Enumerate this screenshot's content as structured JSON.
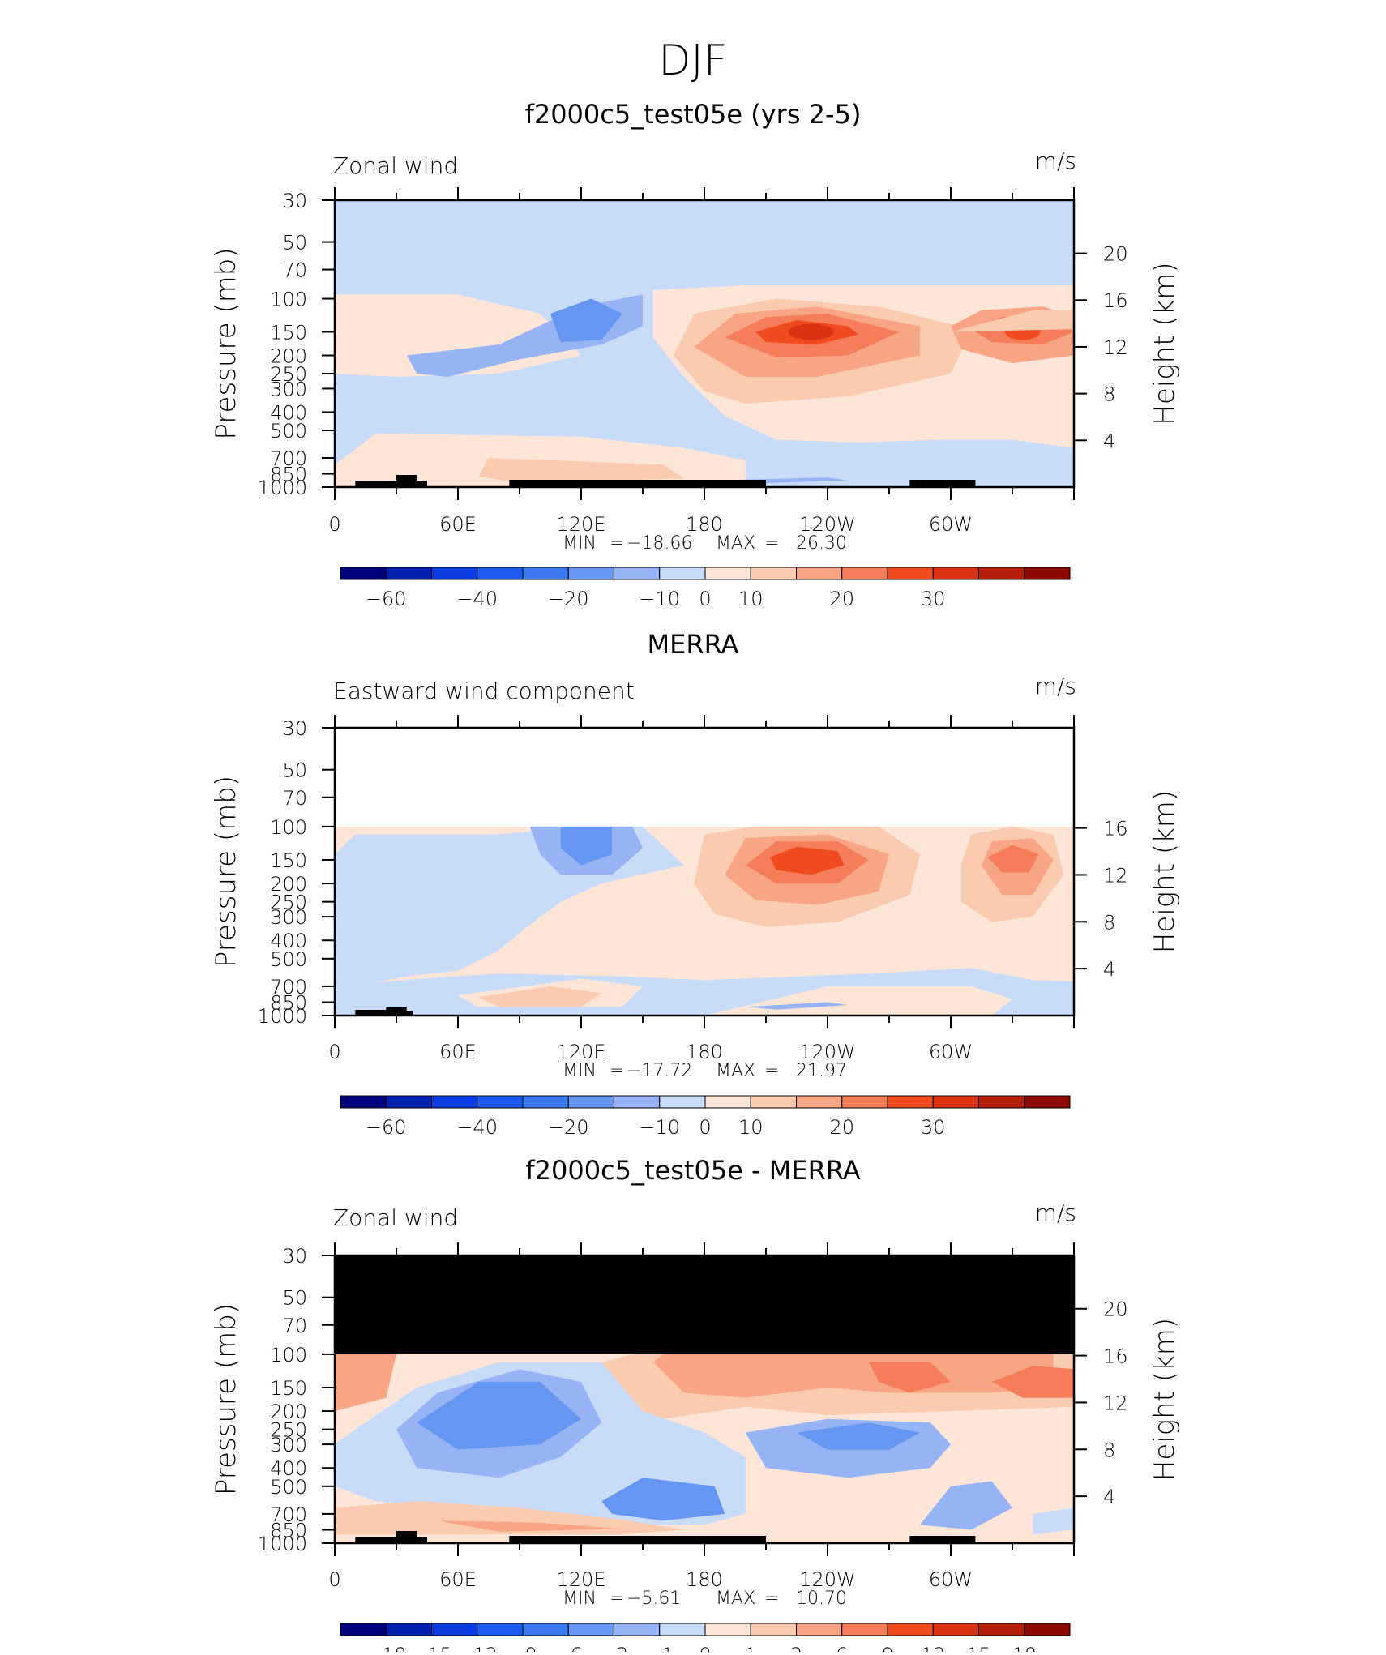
{
  "page_title": "DJF",
  "colors": {
    "land": "#000000",
    "masked": "#000000",
    "frame": "#000000"
  },
  "chart_data": [
    {
      "type": "heatmap",
      "title": "f2000c5_test05e (yrs 2-5)",
      "subtitle_left": "Zonal wind",
      "subtitle_right": "m/s",
      "ylabel": "Pressure (mb)",
      "ylabel_right": "Height (km)",
      "x_ticks": [
        "0",
        "60E",
        "120E",
        "180",
        "120W",
        "60W"
      ],
      "y_ticks": [
        "30",
        "50",
        "70",
        "100",
        "150",
        "200",
        "250",
        "300",
        "400",
        "500",
        "700",
        "850",
        "1000"
      ],
      "y_ticks_right": [
        "20",
        "16",
        "12",
        "8",
        "4"
      ],
      "stats": {
        "min_label": "MIN",
        "min_value": "-18.66",
        "max_label": "MAX",
        "max_value": "26.30"
      },
      "colorbar": {
        "levels": [
          "-60",
          "-40",
          "-20",
          "-10",
          "0",
          "10",
          "20",
          "30"
        ],
        "colors": [
          "#00007f",
          "#0020b0",
          "#0a3ce0",
          "#1e5af0",
          "#3c78f0",
          "#6496f2",
          "#96b4f5",
          "#c8dcfa",
          "#fde6d7",
          "#fbcbb0",
          "#f8a585",
          "#f57d5a",
          "#f04b1e",
          "#dc3214",
          "#b41e0a",
          "#8c0a00"
        ]
      },
      "background_value": "-2",
      "masked_top": false,
      "features": [
        {
          "lon": 110,
          "p": 150,
          "value": 26.3,
          "desc": "jet max"
        },
        {
          "lon": 330,
          "p": 150,
          "value": 22,
          "desc": "jet max"
        },
        {
          "lon": 120,
          "p": 110,
          "value": -18.66,
          "desc": "min"
        }
      ]
    },
    {
      "type": "heatmap",
      "title": "MERRA",
      "subtitle_left": "Eastward wind component",
      "subtitle_right": "m/s",
      "ylabel": "Pressure (mb)",
      "ylabel_right": "Height (km)",
      "x_ticks": [
        "0",
        "60E",
        "120E",
        "180",
        "120W",
        "60W"
      ],
      "y_ticks": [
        "30",
        "50",
        "70",
        "100",
        "150",
        "200",
        "250",
        "300",
        "400",
        "500",
        "700",
        "850",
        "1000"
      ],
      "y_ticks_right": [
        "16",
        "12",
        "8",
        "4"
      ],
      "stats": {
        "min_label": "MIN",
        "min_value": "-17.72",
        "max_label": "MAX",
        "max_value": "21.97"
      },
      "colorbar": {
        "levels": [
          "-60",
          "-40",
          "-20",
          "-10",
          "0",
          "10",
          "20",
          "30"
        ],
        "colors": [
          "#00007f",
          "#0020b0",
          "#0a3ce0",
          "#1e5af0",
          "#3c78f0",
          "#6496f2",
          "#96b4f5",
          "#c8dcfa",
          "#fde6d7",
          "#fbcbb0",
          "#f8a585",
          "#f57d5a",
          "#f04b1e",
          "#dc3214",
          "#b41e0a",
          "#8c0a00"
        ]
      },
      "background_value": "2",
      "masked_top": false,
      "features": [
        {
          "lon": 230,
          "p": 150,
          "value": 21.97,
          "desc": "jet max"
        },
        {
          "lon": 330,
          "p": 150,
          "value": 18,
          "desc": "jet max"
        },
        {
          "lon": 120,
          "p": 100,
          "value": -17.72,
          "desc": "min"
        }
      ]
    },
    {
      "type": "heatmap",
      "title": "f2000c5_test05e - MERRA",
      "subtitle_left": "Zonal wind",
      "subtitle_right": "m/s",
      "ylabel": "Pressure (mb)",
      "ylabel_right": "Height (km)",
      "x_ticks": [
        "0",
        "60E",
        "120E",
        "180",
        "120W",
        "60W"
      ],
      "y_ticks": [
        "30",
        "50",
        "70",
        "100",
        "150",
        "200",
        "250",
        "300",
        "400",
        "500",
        "700",
        "850",
        "1000"
      ],
      "y_ticks_right": [
        "20",
        "16",
        "12",
        "8",
        "4"
      ],
      "stats": {
        "min_label": "MIN",
        "min_value": "-5.61",
        "max_label": "MAX",
        "max_value": "10.70"
      },
      "colorbar": {
        "levels": [
          "-18",
          "-15",
          "-12",
          "-9",
          "-6",
          "-3",
          "-1",
          "0",
          "1",
          "3",
          "6",
          "9",
          "12",
          "15",
          "18"
        ],
        "colors": [
          "#00007f",
          "#0020b0",
          "#0a3ce0",
          "#1e5af0",
          "#3c78f0",
          "#6496f2",
          "#96b4f5",
          "#c8dcfa",
          "#fde6d7",
          "#fbcbb0",
          "#f8a585",
          "#f57d5a",
          "#f04b1e",
          "#dc3214",
          "#b41e0a",
          "#8c0a00"
        ]
      },
      "background_value": "1",
      "masked_top": true,
      "features": [
        {
          "lon": 330,
          "p": 150,
          "value": 10.7,
          "desc": "max"
        },
        {
          "lon": 90,
          "p": 200,
          "value": -5.61,
          "desc": "min"
        }
      ]
    }
  ]
}
